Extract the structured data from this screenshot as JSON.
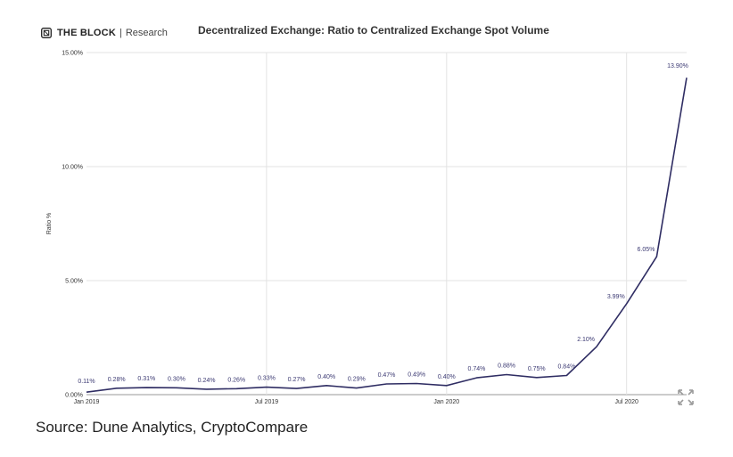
{
  "header": {
    "brand": "THE BLOCK",
    "separator": "|",
    "brand_sub": "Research",
    "logo_icon": "the-block-logo-icon"
  },
  "chart_data": {
    "type": "line",
    "title": "Decentralized Exchange: Ratio to Centralized Exchange Spot Volume",
    "xlabel": "",
    "ylabel": "Ratio %",
    "ylim": [
      0,
      15
    ],
    "y_ticks": [
      "0.00%",
      "5.00%",
      "10.00%",
      "15.00%"
    ],
    "y_tick_values": [
      0,
      5,
      10,
      15
    ],
    "x_ticks": [
      "Jan 2019",
      "Jul 2019",
      "Jan 2020",
      "Jul 2020"
    ],
    "x_tick_indices": [
      0,
      6,
      12,
      18
    ],
    "x": [
      "2019-01",
      "2019-02",
      "2019-03",
      "2019-04",
      "2019-05",
      "2019-06",
      "2019-07",
      "2019-08",
      "2019-09",
      "2019-10",
      "2019-11",
      "2019-12",
      "2020-01",
      "2020-02",
      "2020-03",
      "2020-04",
      "2020-05",
      "2020-06",
      "2020-07",
      "2020-08",
      "2020-09"
    ],
    "series": [
      {
        "values": [
          0.11,
          0.28,
          0.31,
          0.3,
          0.24,
          0.26,
          0.33,
          0.27,
          0.4,
          0.29,
          0.47,
          0.49,
          0.4,
          0.74,
          0.88,
          0.75,
          0.84,
          2.1,
          3.99,
          6.05,
          13.9
        ],
        "labels": [
          "0.11%",
          "0.28%",
          "0.31%",
          "0.30%",
          "0.24%",
          "0.26%",
          "0.33%",
          "0.27%",
          "0.40%",
          "0.29%",
          "0.47%",
          "0.49%",
          "0.40%",
          "0.74%",
          "0.88%",
          "0.75%",
          "0.84%",
          "2.10%",
          "3.99%",
          "6.05%",
          "13.90%"
        ],
        "color": "#2f2d63"
      }
    ],
    "grid": true,
    "legend": "none"
  },
  "colors": {
    "line": "#2f2d63",
    "grid": "#e3e3e3",
    "axis": "#9a9a9a"
  },
  "footer": {
    "source": "Source: Dune Analytics, CryptoCompare"
  },
  "icons": {
    "expand": "expand-icon"
  }
}
